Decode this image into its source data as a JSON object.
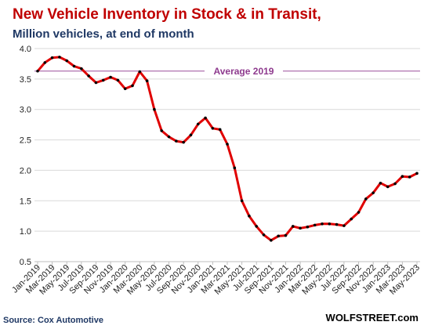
{
  "chart_data": {
    "type": "line",
    "title": "New Vehicle Inventory in Stock & in Transit,",
    "subtitle": "Million vehicles, at end of month",
    "ylim": [
      0.5,
      4.0
    ],
    "yticks": [
      "0.5",
      "1.0",
      "1.5",
      "2.0",
      "2.5",
      "3.0",
      "3.5",
      "4.0"
    ],
    "grid": "horizontal",
    "x_tick_labels": [
      "Jan-2019",
      "Mar-2019",
      "May-2019",
      "Jul-2019",
      "Sep-2019",
      "Nov-2019",
      "Jan-2020",
      "Mar-2020",
      "May-2020",
      "Jul-2020",
      "Sep-2020",
      "Nov-2020",
      "Jan-2021",
      "Mar-2021",
      "May-2021",
      "Jul-2021",
      "Sep-2021",
      "Nov-2021",
      "Jan-2022",
      "Mar-2022",
      "May-2022",
      "Jul-2022",
      "Sep-2022",
      "Nov-2022",
      "Jan-2023",
      "Mar-2023",
      "May-2023"
    ],
    "x": [
      "Jan-2019",
      "Feb-2019",
      "Mar-2019",
      "Apr-2019",
      "May-2019",
      "Jun-2019",
      "Jul-2019",
      "Aug-2019",
      "Sep-2019",
      "Oct-2019",
      "Nov-2019",
      "Dec-2019",
      "Jan-2020",
      "Feb-2020",
      "Mar-2020",
      "Apr-2020",
      "May-2020",
      "Jun-2020",
      "Jul-2020",
      "Aug-2020",
      "Sep-2020",
      "Oct-2020",
      "Nov-2020",
      "Dec-2020",
      "Jan-2021",
      "Feb-2021",
      "Mar-2021",
      "Apr-2021",
      "May-2021",
      "Jun-2021",
      "Jul-2021",
      "Aug-2021",
      "Sep-2021",
      "Oct-2021",
      "Nov-2021",
      "Dec-2021",
      "Jan-2022",
      "Feb-2022",
      "Mar-2022",
      "Apr-2022",
      "May-2022",
      "Jun-2022",
      "Jul-2022",
      "Aug-2022",
      "Sep-2022",
      "Oct-2022",
      "Nov-2022",
      "Dec-2022",
      "Jan-2023",
      "Feb-2023",
      "Mar-2023",
      "Apr-2023",
      "May-2023"
    ],
    "values": [
      3.63,
      3.77,
      3.85,
      3.86,
      3.8,
      3.71,
      3.67,
      3.55,
      3.44,
      3.48,
      3.53,
      3.48,
      3.34,
      3.39,
      3.62,
      3.47,
      3.0,
      2.65,
      2.55,
      2.48,
      2.46,
      2.58,
      2.76,
      2.86,
      2.69,
      2.67,
      2.43,
      2.04,
      1.5,
      1.25,
      1.08,
      0.94,
      0.85,
      0.92,
      0.93,
      1.08,
      1.05,
      1.07,
      1.1,
      1.12,
      1.12,
      1.11,
      1.09,
      1.2,
      1.31,
      1.53,
      1.63,
      1.79,
      1.73,
      1.78,
      1.9,
      1.89,
      1.95
    ],
    "reference_line": {
      "label": "Average 2019",
      "value": 3.63
    },
    "colors": {
      "line": "#e00000",
      "marker": "#000000",
      "reference": "#9b4f9b",
      "grid": "#d9d9d9"
    }
  },
  "footer": {
    "source": "Source: Cox Automotive",
    "brand": "WOLFSTREET.com"
  }
}
